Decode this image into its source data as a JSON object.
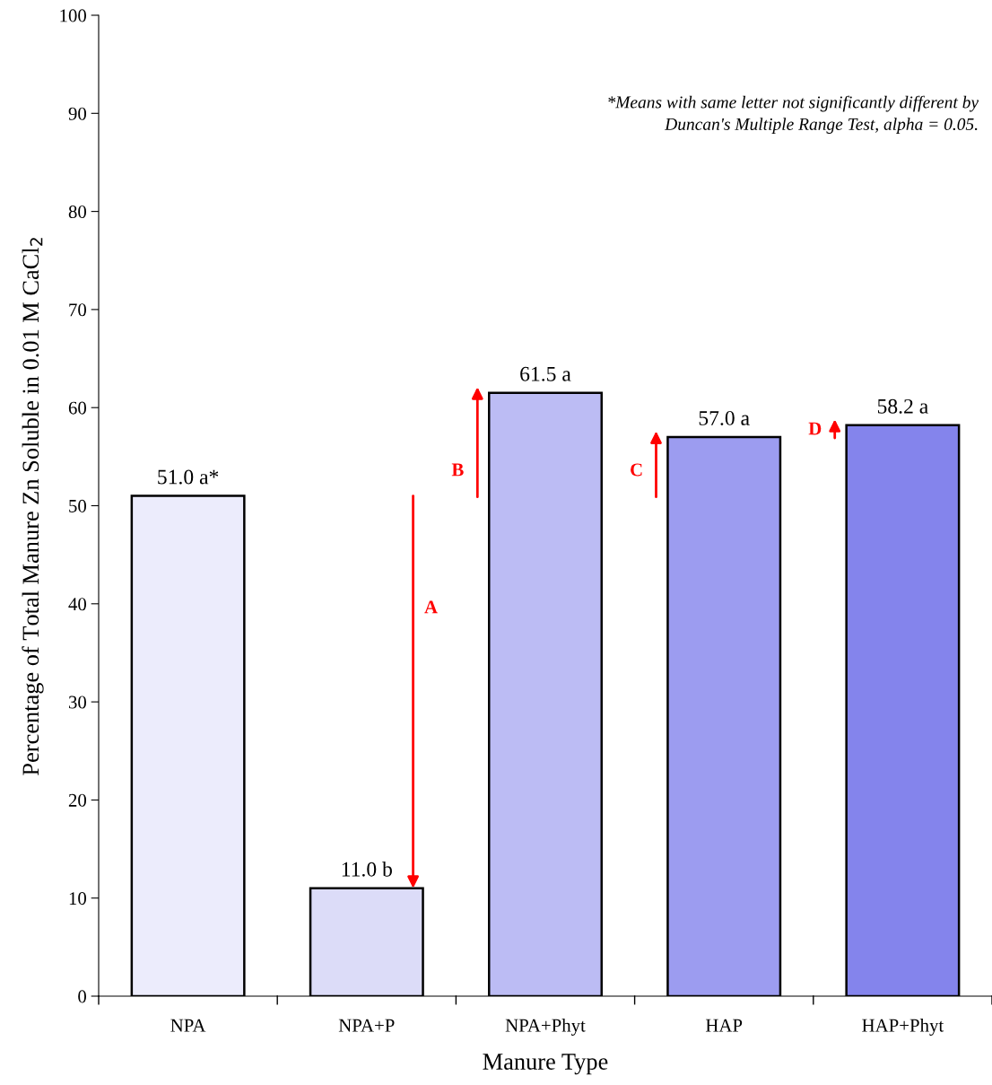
{
  "chart_data": {
    "type": "bar",
    "xlabel": "Manure Type",
    "ylabel": "Percentage of Total Manure Zn Soluble in 0.01 M CaCl$_{2}$",
    "categories": [
      "NPA",
      "NPA+P",
      "NPA+Phyt",
      "HAP",
      "HAP+Phyt"
    ],
    "values": [
      51.0,
      11.0,
      61.5,
      57.0,
      58.2
    ],
    "colors": [
      "#ececfc",
      "#dcdcf8",
      "#bcbcf4",
      "#9c9cf0",
      "#8484ec"
    ],
    "value_labels": [
      "51.0 a*",
      "11.0 b",
      "61.5 a",
      "57.0 a",
      "58.2 a"
    ],
    "ylim": [
      0,
      100
    ],
    "yticks": [
      0,
      10,
      20,
      30,
      40,
      50,
      60,
      70,
      80,
      90,
      100
    ],
    "grid": false,
    "legend": false,
    "annotations": [
      "*Means with same letter not significantly different by\nDuncan's Multiple Range Test, alpha = 0.05.",
      "A",
      "B",
      "C",
      "D"
    ]
  }
}
